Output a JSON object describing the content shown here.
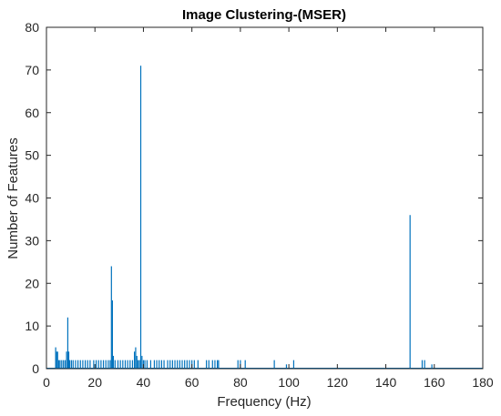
{
  "colors": {
    "bar": "#0072BD",
    "axis": "#262626",
    "background": "#ffffff"
  },
  "chart_data": {
    "type": "bar",
    "title": "Image Clustering-(MSER)",
    "xlabel": "Frequency (Hz)",
    "ylabel": "Number of Features",
    "xlim": [
      0,
      180
    ],
    "ylim": [
      0,
      80
    ],
    "xticks": [
      0,
      20,
      40,
      60,
      80,
      100,
      120,
      140,
      160,
      180
    ],
    "yticks": [
      0,
      10,
      20,
      30,
      40,
      50,
      60,
      70,
      80
    ],
    "grid": false,
    "x": [
      3.8,
      4.2,
      4.6,
      5.1,
      5.6,
      6.3,
      7.0,
      7.7,
      8.3,
      8.8,
      9.2,
      9.6,
      10.3,
      11.0,
      12.0,
      13.0,
      14.0,
      15.0,
      16.0,
      17.0,
      18.0,
      19.5,
      20.5,
      21.5,
      22.5,
      23.5,
      24.5,
      25.5,
      26.3,
      26.8,
      27.2,
      27.6,
      28.3,
      29.5,
      30.5,
      31.5,
      32.5,
      33.5,
      34.5,
      35.5,
      36.3,
      36.8,
      37.3,
      37.8,
      38.4,
      38.9,
      39.4,
      40.0,
      40.6,
      41.5,
      43.0,
      44.5,
      45.5,
      46.5,
      47.5,
      48.5,
      50.0,
      51.0,
      52.0,
      53.0,
      54.0,
      55.0,
      56.0,
      57.0,
      58.0,
      59.0,
      60.0,
      61.0,
      62.5,
      66.0,
      67.0,
      68.5,
      69.5,
      70.5,
      71.0,
      79.0,
      80.0,
      82.0,
      94.0,
      99.0,
      102.0,
      150.0,
      155.0,
      156.0,
      159.0
    ],
    "values": [
      5,
      4,
      4,
      2,
      2,
      2,
      2,
      2,
      4,
      12,
      4,
      2,
      2,
      2,
      2,
      2,
      2,
      2,
      2,
      2,
      2,
      2,
      2,
      2,
      2,
      2,
      2,
      2,
      2,
      24,
      16,
      3,
      2,
      2,
      2,
      2,
      2,
      2,
      2,
      2,
      4,
      5,
      3,
      2,
      2,
      71,
      3,
      2,
      2,
      2,
      2,
      2,
      2,
      2,
      2,
      2,
      2,
      2,
      2,
      2,
      2,
      2,
      2,
      2,
      2,
      2,
      2,
      2,
      2,
      2,
      2,
      2,
      2,
      2,
      2,
      2,
      2,
      2,
      2,
      1,
      2,
      36,
      2,
      2,
      1
    ]
  }
}
